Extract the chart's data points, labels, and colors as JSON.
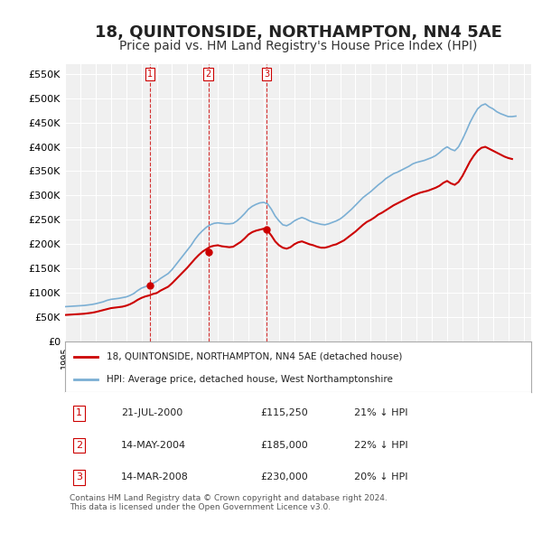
{
  "title": "18, QUINTONSIDE, NORTHAMPTON, NN4 5AE",
  "subtitle": "Price paid vs. HM Land Registry's House Price Index (HPI)",
  "title_fontsize": 13,
  "subtitle_fontsize": 10,
  "background_color": "#ffffff",
  "plot_bg_color": "#f0f0f0",
  "grid_color": "#ffffff",
  "hpi_color": "#7bafd4",
  "price_color": "#cc0000",
  "vline_color": "#cc0000",
  "ylabel_fontsize": 9,
  "xlabel_fontsize": 8,
  "ylim": [
    0,
    570000
  ],
  "yticks": [
    0,
    50000,
    100000,
    150000,
    200000,
    250000,
    300000,
    350000,
    400000,
    450000,
    500000,
    550000
  ],
  "ytick_labels": [
    "£0",
    "£50K",
    "£100K",
    "£150K",
    "£200K",
    "£250K",
    "£300K",
    "£350K",
    "£400K",
    "£450K",
    "£500K",
    "£550K"
  ],
  "xmin": 1995.0,
  "xmax": 2025.5,
  "purchases": [
    {
      "date_num": 2000.55,
      "price": 115250,
      "label": "1"
    },
    {
      "date_num": 2004.37,
      "price": 185000,
      "label": "2"
    },
    {
      "date_num": 2008.2,
      "price": 230000,
      "label": "3"
    }
  ],
  "legend_entries": [
    "18, QUINTONSIDE, NORTHAMPTON, NN4 5AE (detached house)",
    "HPI: Average price, detached house, West Northamptonshire"
  ],
  "table_rows": [
    {
      "num": "1",
      "date": "21-JUL-2000",
      "price": "£115,250",
      "hpi": "21% ↓ HPI"
    },
    {
      "num": "2",
      "date": "14-MAY-2004",
      "price": "£185,000",
      "hpi": "22% ↓ HPI"
    },
    {
      "num": "3",
      "date": "14-MAR-2008",
      "price": "£230,000",
      "hpi": "20% ↓ HPI"
    }
  ],
  "footer": "Contains HM Land Registry data © Crown copyright and database right 2024.\nThis data is licensed under the Open Government Licence v3.0.",
  "hpi_data": {
    "years": [
      1995.0,
      1995.25,
      1995.5,
      1995.75,
      1996.0,
      1996.25,
      1996.5,
      1996.75,
      1997.0,
      1997.25,
      1997.5,
      1997.75,
      1998.0,
      1998.25,
      1998.5,
      1998.75,
      1999.0,
      1999.25,
      1999.5,
      1999.75,
      2000.0,
      2000.25,
      2000.5,
      2000.75,
      2001.0,
      2001.25,
      2001.5,
      2001.75,
      2002.0,
      2002.25,
      2002.5,
      2002.75,
      2003.0,
      2003.25,
      2003.5,
      2003.75,
      2004.0,
      2004.25,
      2004.5,
      2004.75,
      2005.0,
      2005.25,
      2005.5,
      2005.75,
      2006.0,
      2006.25,
      2006.5,
      2006.75,
      2007.0,
      2007.25,
      2007.5,
      2007.75,
      2008.0,
      2008.25,
      2008.5,
      2008.75,
      2009.0,
      2009.25,
      2009.5,
      2009.75,
      2010.0,
      2010.25,
      2010.5,
      2010.75,
      2011.0,
      2011.25,
      2011.5,
      2011.75,
      2012.0,
      2012.25,
      2012.5,
      2012.75,
      2013.0,
      2013.25,
      2013.5,
      2013.75,
      2014.0,
      2014.25,
      2014.5,
      2014.75,
      2015.0,
      2015.25,
      2015.5,
      2015.75,
      2016.0,
      2016.25,
      2016.5,
      2016.75,
      2017.0,
      2017.25,
      2017.5,
      2017.75,
      2018.0,
      2018.25,
      2018.5,
      2018.75,
      2019.0,
      2019.25,
      2019.5,
      2019.75,
      2020.0,
      2020.25,
      2020.5,
      2020.75,
      2021.0,
      2021.25,
      2021.5,
      2021.75,
      2022.0,
      2022.25,
      2022.5,
      2022.75,
      2023.0,
      2023.25,
      2023.5,
      2023.75,
      2024.0,
      2024.25,
      2024.5
    ],
    "values": [
      72000,
      72500,
      73000,
      73500,
      74000,
      74500,
      75500,
      76500,
      78000,
      80000,
      82000,
      85000,
      87000,
      88000,
      89000,
      90500,
      92000,
      95000,
      99000,
      105000,
      110000,
      113000,
      116000,
      120000,
      124000,
      130000,
      135000,
      140000,
      148000,
      158000,
      168000,
      178000,
      188000,
      198000,
      210000,
      220000,
      228000,
      235000,
      240000,
      243000,
      244000,
      243000,
      242000,
      242000,
      243000,
      248000,
      255000,
      263000,
      272000,
      278000,
      282000,
      285000,
      286000,
      283000,
      272000,
      258000,
      248000,
      240000,
      238000,
      242000,
      248000,
      252000,
      255000,
      252000,
      248000,
      245000,
      243000,
      241000,
      240000,
      242000,
      245000,
      248000,
      252000,
      258000,
      265000,
      272000,
      280000,
      288000,
      296000,
      302000,
      308000,
      315000,
      322000,
      328000,
      335000,
      340000,
      345000,
      348000,
      352000,
      356000,
      360000,
      365000,
      368000,
      370000,
      372000,
      375000,
      378000,
      382000,
      388000,
      395000,
      400000,
      395000,
      392000,
      400000,
      415000,
      432000,
      450000,
      465000,
      478000,
      485000,
      488000,
      482000,
      478000,
      472000,
      468000,
      465000,
      462000,
      462000,
      463000
    ]
  },
  "price_index_data": {
    "years": [
      1995.0,
      1995.25,
      1995.5,
      1995.75,
      1996.0,
      1996.25,
      1996.5,
      1996.75,
      1997.0,
      1997.25,
      1997.5,
      1997.75,
      1998.0,
      1998.25,
      1998.5,
      1998.75,
      1999.0,
      1999.25,
      1999.5,
      1999.75,
      2000.0,
      2000.25,
      2000.5,
      2000.75,
      2001.0,
      2001.25,
      2001.5,
      2001.75,
      2002.0,
      2002.25,
      2002.5,
      2002.75,
      2003.0,
      2003.25,
      2003.5,
      2003.75,
      2004.0,
      2004.25,
      2004.5,
      2004.75,
      2005.0,
      2005.25,
      2005.5,
      2005.75,
      2006.0,
      2006.25,
      2006.5,
      2006.75,
      2007.0,
      2007.25,
      2007.5,
      2007.75,
      2008.0,
      2008.25,
      2008.5,
      2008.75,
      2009.0,
      2009.25,
      2009.5,
      2009.75,
      2010.0,
      2010.25,
      2010.5,
      2010.75,
      2011.0,
      2011.25,
      2011.5,
      2011.75,
      2012.0,
      2012.25,
      2012.5,
      2012.75,
      2013.0,
      2013.25,
      2013.5,
      2013.75,
      2014.0,
      2014.25,
      2014.5,
      2014.75,
      2015.0,
      2015.25,
      2015.5,
      2015.75,
      2016.0,
      2016.25,
      2016.5,
      2016.75,
      2017.0,
      2017.25,
      2017.5,
      2017.75,
      2018.0,
      2018.25,
      2018.5,
      2018.75,
      2019.0,
      2019.25,
      2019.5,
      2019.75,
      2020.0,
      2020.25,
      2020.5,
      2020.75,
      2021.0,
      2021.25,
      2021.5,
      2021.75,
      2022.0,
      2022.25,
      2022.5,
      2022.75,
      2023.0,
      2023.25,
      2023.5,
      2023.75,
      2024.0,
      2024.25
    ],
    "values": [
      55000,
      55500,
      56000,
      56500,
      57000,
      57500,
      58500,
      59500,
      61000,
      63000,
      65000,
      67000,
      69000,
      70000,
      71000,
      72000,
      74000,
      77000,
      81000,
      86000,
      90000,
      93000,
      95000,
      98000,
      100000,
      105000,
      109000,
      113000,
      120000,
      128000,
      136000,
      144000,
      152000,
      161000,
      170000,
      178000,
      185000,
      190000,
      195000,
      197000,
      198000,
      196000,
      195000,
      194000,
      195000,
      200000,
      205000,
      212000,
      220000,
      225000,
      228000,
      230000,
      232000,
      228000,
      218000,
      206000,
      198000,
      193000,
      191000,
      194000,
      200000,
      204000,
      206000,
      203000,
      200000,
      198000,
      195000,
      193000,
      193000,
      195000,
      198000,
      200000,
      204000,
      208000,
      214000,
      220000,
      226000,
      233000,
      240000,
      246000,
      250000,
      255000,
      261000,
      265000,
      270000,
      275000,
      280000,
      284000,
      288000,
      292000,
      296000,
      300000,
      303000,
      306000,
      308000,
      310000,
      313000,
      316000,
      320000,
      326000,
      330000,
      325000,
      322000,
      328000,
      340000,
      355000,
      370000,
      382000,
      392000,
      398000,
      400000,
      396000,
      392000,
      388000,
      384000,
      380000,
      377000,
      375000
    ]
  }
}
